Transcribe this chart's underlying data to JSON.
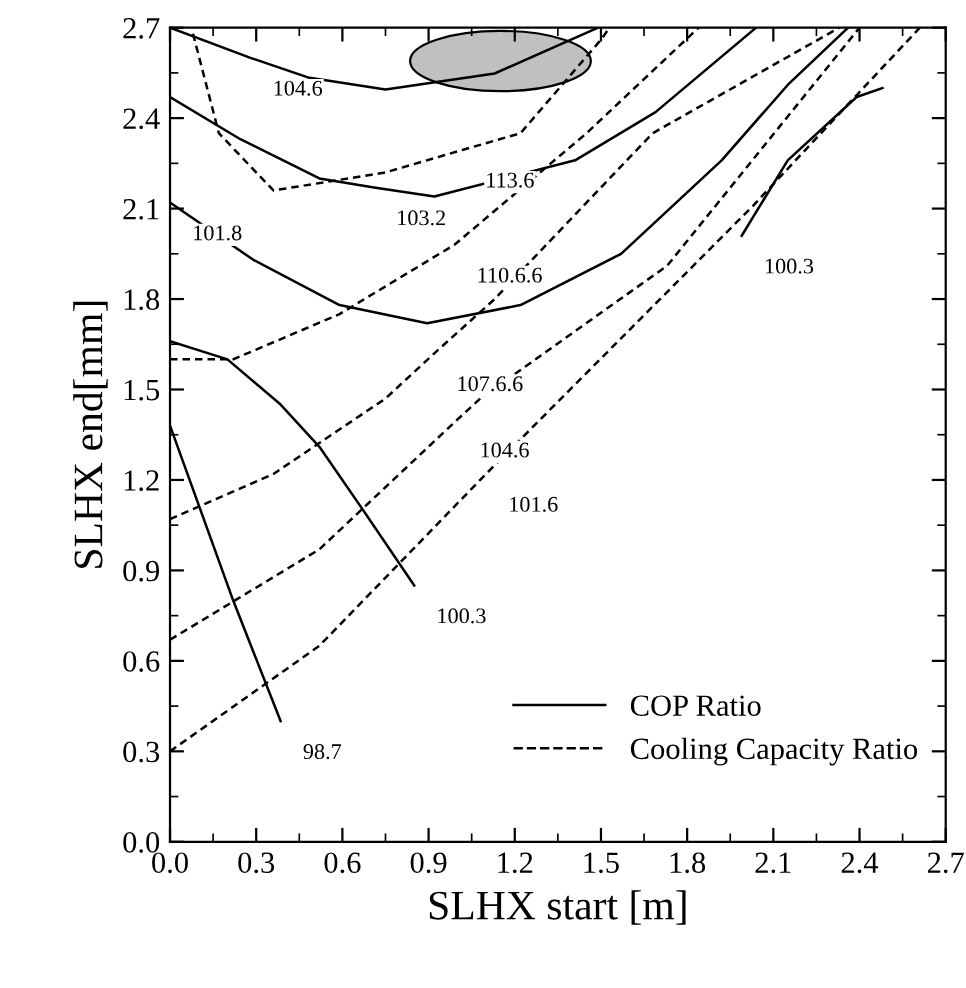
{
  "chart_data": {
    "type": "line",
    "xlabel": "SLHX start [m]",
    "ylabel": "SLHX end[mm]",
    "xlim": [
      0.0,
      2.7
    ],
    "ylim": [
      0.0,
      2.7
    ],
    "xticks": [
      {
        "value": 0.0,
        "label": "0.0"
      },
      0.3,
      0.6,
      0.9,
      1.2,
      1.5,
      1.8,
      2.1,
      2.4,
      2.7
    ],
    "yticks": [
      {
        "value": 0.0,
        "label": "0.0"
      },
      0.3,
      0.6,
      0.9,
      1.2,
      1.5,
      1.8,
      2.1,
      2.4,
      2.7
    ],
    "grid": false,
    "legend": "bottom right",
    "marker": "none",
    "series": [
      {
        "name": "COP Ratio",
        "color": "#000000",
        "line_style": "solid",
        "x": [
          0.0,
          0.28,
          0.48,
          0.75,
          1.13,
          1.49
        ],
        "values": [
          2.7,
          2.6,
          2.535,
          2.495,
          2.548,
          2.7
        ]
      },
      {
        "color": "#000000",
        "line_style": "solid",
        "x": [
          0.0,
          0.245,
          0.52,
          0.71,
          0.92,
          1.41,
          1.69,
          2.04
        ],
        "values": [
          2.47,
          2.33,
          2.2,
          2.17,
          2.14,
          2.26,
          2.42,
          2.7
        ]
      },
      {
        "color": "#000000",
        "line_style": "solid",
        "x": [
          0.0,
          0.29,
          0.59,
          0.895,
          1.22,
          1.57,
          1.92,
          2.15,
          2.36
        ],
        "values": [
          2.12,
          1.93,
          1.78,
          1.72,
          1.78,
          1.95,
          2.26,
          2.51,
          2.7
        ]
      },
      {
        "color": "#000000",
        "line_style": "solid",
        "x": [
          0.0,
          0.2,
          0.385,
          0.52,
          0.665,
          0.85
        ],
        "values": [
          1.66,
          1.6,
          1.45,
          1.31,
          1.11,
          0.85
        ]
      },
      {
        "color": "#000000",
        "line_style": "solid",
        "x": [
          1.99,
          2.15,
          2.39,
          2.48
        ],
        "values": [
          2.01,
          2.26,
          2.47,
          2.5
        ]
      },
      {
        "color": "#000000",
        "line_style": "solid",
        "x": [
          0.0,
          0.22,
          0.385
        ],
        "values": [
          1.38,
          0.8,
          0.4
        ]
      },
      {
        "name": "Cooling Capacity Ratio",
        "color": "#000000",
        "line_style": "dashed",
        "x": [
          0.08,
          0.17,
          0.36,
          0.75,
          1.02,
          1.22,
          1.5,
          1.53
        ],
        "values": [
          2.68,
          2.35,
          2.16,
          2.22,
          2.295,
          2.35,
          2.66,
          2.7
        ]
      },
      {
        "color": "#000000",
        "line_style": "dashed",
        "x": [
          0.0,
          0.22,
          0.59,
          0.99,
          1.45,
          1.84
        ],
        "values": [
          1.6,
          1.6,
          1.75,
          1.98,
          2.35,
          2.7
        ]
      },
      {
        "color": "#000000",
        "line_style": "dashed",
        "x": [
          0.0,
          0.36,
          0.75,
          0.92,
          1.13,
          1.68,
          2.33
        ],
        "values": [
          1.07,
          1.22,
          1.47,
          1.62,
          1.8,
          2.35,
          2.7
        ]
      },
      {
        "color": "#000000",
        "line_style": "dashed",
        "x": [
          0.0,
          0.52,
          1.0,
          1.08,
          1.73,
          2.4
        ],
        "values": [
          0.67,
          0.97,
          1.4,
          1.47,
          1.91,
          2.7
        ]
      },
      {
        "color": "#000000",
        "line_style": "dashed",
        "x": [
          0.0,
          0.52,
          1.1,
          2.03,
          2.61
        ],
        "values": [
          0.3,
          0.65,
          1.22,
          2.11,
          2.7
        ]
      }
    ],
    "annotations": [
      {
        "text": "104.6",
        "x": 0.28,
        "y": 2.6
      },
      {
        "text": "113.6",
        "x": 1.02,
        "y": 2.295
      },
      {
        "text": "103.2",
        "x": 0.71,
        "y": 2.17
      },
      {
        "text": "101.8",
        "x": 0.0,
        "y": 2.12
      },
      {
        "text": "110.6.6",
        "x": 0.99,
        "y": 1.98
      },
      {
        "text": "107.6.6",
        "x": 0.92,
        "y": 1.62
      },
      {
        "text": "104.6",
        "x": 1.0,
        "y": 1.4
      },
      {
        "text": "101.6",
        "x": 1.1,
        "y": 1.22
      },
      {
        "text": "100.3",
        "x": 0.85,
        "y": 0.85
      },
      {
        "text": "100.3",
        "x": 1.99,
        "y": 2.01
      },
      {
        "text": "98.7",
        "x": 0.385,
        "y": 0.4
      }
    ]
  }
}
